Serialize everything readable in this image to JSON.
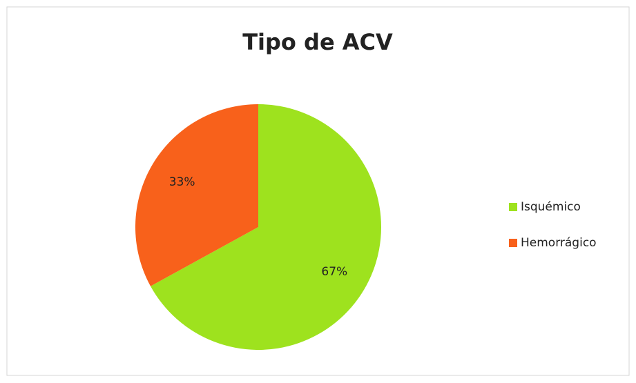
{
  "chart_data": {
    "type": "pie",
    "title": "Tipo de ACV",
    "categories": [
      "Isquémico",
      "Hemorrágico"
    ],
    "values": [
      67,
      33
    ],
    "value_labels": [
      "67%",
      "33%"
    ],
    "colors": [
      "#9ee21e",
      "#f8611b"
    ],
    "legend": "right"
  }
}
